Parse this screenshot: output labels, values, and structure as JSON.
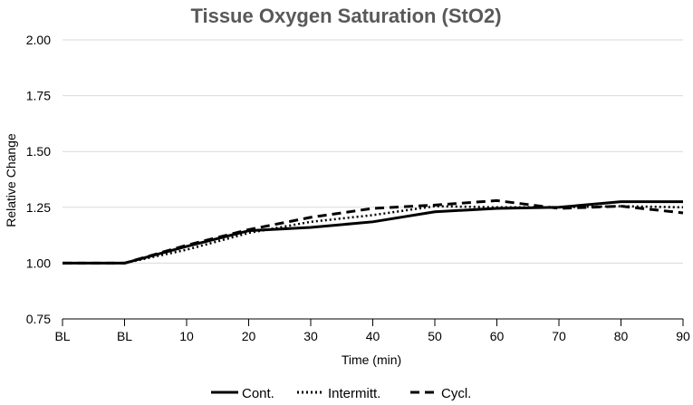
{
  "chart_data": {
    "type": "line",
    "title": "Tissue Oxygen Saturation (StO2)",
    "xlabel": "Time (min)",
    "ylabel": "Relative Change",
    "categories": [
      "BL",
      "BL",
      "10",
      "20",
      "30",
      "40",
      "50",
      "60",
      "70",
      "80",
      "90"
    ],
    "ylim": [
      0.75,
      2.0
    ],
    "yticks": [
      "0.75",
      "1.00",
      "1.25",
      "1.50",
      "1.75",
      "2.00"
    ],
    "grid": true,
    "legend_position": "bottom",
    "series": [
      {
        "name": "Cont.",
        "style": "solid",
        "color": "#000000",
        "values": [
          1.0,
          1.0,
          1.075,
          1.145,
          1.16,
          1.185,
          1.23,
          1.245,
          1.25,
          1.275,
          1.275
        ]
      },
      {
        "name": "Intermitt.",
        "style": "dotted",
        "color": "#000000",
        "values": [
          1.0,
          1.0,
          1.06,
          1.135,
          1.185,
          1.215,
          1.255,
          1.25,
          1.25,
          1.255,
          1.25
        ]
      },
      {
        "name": "Cycl.",
        "style": "dashed",
        "color": "#000000",
        "values": [
          1.0,
          1.0,
          1.08,
          1.15,
          1.205,
          1.245,
          1.26,
          1.28,
          1.245,
          1.255,
          1.225
        ]
      }
    ]
  }
}
